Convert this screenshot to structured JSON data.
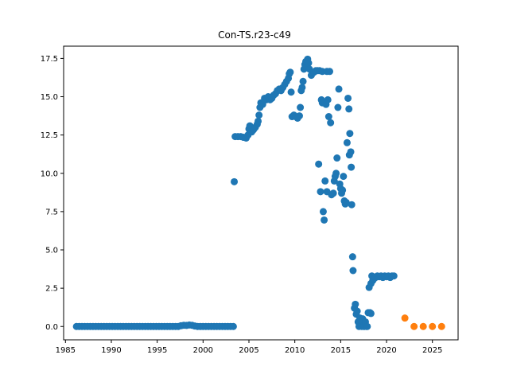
{
  "chart_data": {
    "type": "scatter",
    "title": "Con-TS.r23-c49",
    "xlabel": "",
    "ylabel": "",
    "xlim": [
      1984.8,
      2027.8
    ],
    "ylim": [
      -0.87,
      18.3
    ],
    "x_ticks": [
      1985,
      1990,
      1995,
      2000,
      2005,
      2010,
      2015,
      2020,
      2025
    ],
    "y_ticks": [
      0.0,
      2.5,
      5.0,
      7.5,
      10.0,
      12.5,
      15.0,
      17.5
    ],
    "x_tick_labels": [
      "1985",
      "1990",
      "1995",
      "2000",
      "2005",
      "2010",
      "2015",
      "2020",
      "2025"
    ],
    "y_tick_labels": [
      "0.0",
      "2.5",
      "5.0",
      "7.5",
      "10.0",
      "12.5",
      "15.0",
      "17.5"
    ],
    "grid": false,
    "colors": {
      "series1": "#1f77b4",
      "series2": "#ff7f0e"
    },
    "series": [
      {
        "color": "#1f77b4",
        "points": [
          [
            1986.2,
            0
          ],
          [
            1986.5,
            0
          ],
          [
            1986.8,
            0
          ],
          [
            1987.1,
            0
          ],
          [
            1987.4,
            0
          ],
          [
            1987.7,
            0
          ],
          [
            1988.0,
            0
          ],
          [
            1988.3,
            0
          ],
          [
            1988.6,
            0
          ],
          [
            1988.9,
            0
          ],
          [
            1989.2,
            0
          ],
          [
            1989.5,
            0
          ],
          [
            1989.8,
            0
          ],
          [
            1990.1,
            0
          ],
          [
            1990.4,
            0
          ],
          [
            1990.7,
            0
          ],
          [
            1991.0,
            0
          ],
          [
            1991.3,
            0
          ],
          [
            1991.6,
            0
          ],
          [
            1991.9,
            0
          ],
          [
            1992.2,
            0
          ],
          [
            1992.5,
            0
          ],
          [
            1992.8,
            0
          ],
          [
            1993.1,
            0
          ],
          [
            1993.4,
            0
          ],
          [
            1993.7,
            0
          ],
          [
            1994.0,
            0
          ],
          [
            1994.3,
            0
          ],
          [
            1994.6,
            0
          ],
          [
            1994.9,
            0
          ],
          [
            1995.2,
            0
          ],
          [
            1995.5,
            0
          ],
          [
            1995.8,
            0
          ],
          [
            1996.1,
            0
          ],
          [
            1996.4,
            0
          ],
          [
            1996.7,
            0
          ],
          [
            1997.0,
            0
          ],
          [
            1997.3,
            0
          ],
          [
            1997.6,
            0.05
          ],
          [
            1997.9,
            0.08
          ],
          [
            1998.2,
            0.07
          ],
          [
            1998.5,
            0.1
          ],
          [
            1998.8,
            0.08
          ],
          [
            1999.1,
            0.03
          ],
          [
            1999.4,
            0
          ],
          [
            1999.7,
            0
          ],
          [
            2000.0,
            0
          ],
          [
            2000.3,
            0
          ],
          [
            2000.6,
            0
          ],
          [
            2000.9,
            0
          ],
          [
            2001.2,
            0
          ],
          [
            2001.5,
            0
          ],
          [
            2001.8,
            0
          ],
          [
            2002.1,
            0
          ],
          [
            2002.4,
            0
          ],
          [
            2002.7,
            0
          ],
          [
            2003.0,
            0
          ],
          [
            2003.3,
            0
          ],
          [
            2003.4,
            9.45
          ],
          [
            2003.5,
            12.4
          ],
          [
            2003.8,
            12.4
          ],
          [
            2004.1,
            12.4
          ],
          [
            2004.4,
            12.35
          ],
          [
            2004.7,
            12.3
          ],
          [
            2004.9,
            12.5
          ],
          [
            2005.0,
            12.9
          ],
          [
            2005.1,
            13.1
          ],
          [
            2005.3,
            12.7
          ],
          [
            2005.5,
            12.85
          ],
          [
            2005.7,
            13.0
          ],
          [
            2005.9,
            13.2
          ],
          [
            2006.0,
            13.4
          ],
          [
            2006.1,
            13.8
          ],
          [
            2006.2,
            14.3
          ],
          [
            2006.3,
            14.6
          ],
          [
            2006.5,
            14.5
          ],
          [
            2006.7,
            14.9
          ],
          [
            2006.9,
            14.8
          ],
          [
            2007.1,
            15.0
          ],
          [
            2007.3,
            14.8
          ],
          [
            2007.5,
            14.9
          ],
          [
            2007.7,
            15.1
          ],
          [
            2007.9,
            15.2
          ],
          [
            2008.1,
            15.4
          ],
          [
            2008.3,
            15.5
          ],
          [
            2008.5,
            15.4
          ],
          [
            2008.7,
            15.6
          ],
          [
            2008.9,
            15.8
          ],
          [
            2009.1,
            16.0
          ],
          [
            2009.3,
            16.2
          ],
          [
            2009.4,
            16.5
          ],
          [
            2009.5,
            16.6
          ],
          [
            2009.6,
            15.3
          ],
          [
            2009.7,
            13.7
          ],
          [
            2009.9,
            13.8
          ],
          [
            2010.1,
            13.7
          ],
          [
            2010.3,
            13.6
          ],
          [
            2010.5,
            13.75
          ],
          [
            2010.6,
            14.3
          ],
          [
            2010.7,
            15.4
          ],
          [
            2010.8,
            15.6
          ],
          [
            2010.9,
            16.0
          ],
          [
            2011.0,
            16.8
          ],
          [
            2011.1,
            17.1
          ],
          [
            2011.2,
            17.3
          ],
          [
            2011.4,
            17.45
          ],
          [
            2011.5,
            17.2
          ],
          [
            2011.6,
            16.8
          ],
          [
            2011.8,
            16.4
          ],
          [
            2011.9,
            16.6
          ],
          [
            2012.1,
            16.6
          ],
          [
            2012.3,
            16.7
          ],
          [
            2012.5,
            16.7
          ],
          [
            2012.7,
            16.7
          ],
          [
            2013.0,
            16.65
          ],
          [
            2013.5,
            16.65
          ],
          [
            2013.8,
            16.65
          ],
          [
            2012.6,
            10.6
          ],
          [
            2012.8,
            8.8
          ],
          [
            2012.9,
            14.8
          ],
          [
            2013.0,
            14.6
          ],
          [
            2013.1,
            7.5
          ],
          [
            2013.2,
            6.95
          ],
          [
            2013.3,
            9.5
          ],
          [
            2013.4,
            14.5
          ],
          [
            2013.5,
            8.8
          ],
          [
            2013.6,
            14.8
          ],
          [
            2013.7,
            13.7
          ],
          [
            2013.9,
            13.3
          ],
          [
            2014.0,
            8.6
          ],
          [
            2014.2,
            8.7
          ],
          [
            2014.3,
            9.5
          ],
          [
            2014.4,
            9.8
          ],
          [
            2014.5,
            10.0
          ],
          [
            2014.6,
            11.0
          ],
          [
            2014.7,
            14.3
          ],
          [
            2014.8,
            15.5
          ],
          [
            2014.9,
            9.3
          ],
          [
            2015.0,
            9.0
          ],
          [
            2015.1,
            8.7
          ],
          [
            2015.2,
            8.9
          ],
          [
            2015.3,
            9.8
          ],
          [
            2015.4,
            8.2
          ],
          [
            2015.5,
            8.0
          ],
          [
            2015.6,
            8.1
          ],
          [
            2015.7,
            12.0
          ],
          [
            2015.8,
            14.9
          ],
          [
            2015.9,
            14.2
          ],
          [
            2015.95,
            11.2
          ],
          [
            2016.0,
            12.6
          ],
          [
            2016.1,
            11.4
          ],
          [
            2016.15,
            10.4
          ],
          [
            2016.2,
            7.95
          ],
          [
            2016.3,
            4.55
          ],
          [
            2016.35,
            3.65
          ],
          [
            2016.5,
            1.2
          ],
          [
            2016.6,
            1.45
          ],
          [
            2016.7,
            0.8
          ],
          [
            2016.8,
            1.0
          ],
          [
            2016.9,
            0.3
          ],
          [
            2017.0,
            0.0
          ],
          [
            2017.1,
            0.55
          ],
          [
            2017.2,
            0.4
          ],
          [
            2017.3,
            0.0
          ],
          [
            2017.4,
            0.5
          ],
          [
            2017.5,
            0.0
          ],
          [
            2017.6,
            0.0
          ],
          [
            2017.7,
            0.3
          ],
          [
            2017.8,
            0.0
          ],
          [
            2017.9,
            0.0
          ],
          [
            2018.0,
            0.9
          ],
          [
            2018.2,
            0.9
          ],
          [
            2018.3,
            0.85
          ],
          [
            2018.1,
            2.55
          ],
          [
            2018.3,
            2.8
          ],
          [
            2018.4,
            3.3
          ],
          [
            2018.5,
            3.0
          ],
          [
            2018.6,
            3.1
          ],
          [
            2018.8,
            3.2
          ],
          [
            2019.0,
            3.3
          ],
          [
            2019.2,
            3.25
          ],
          [
            2019.4,
            3.3
          ],
          [
            2019.6,
            3.2
          ],
          [
            2019.8,
            3.3
          ],
          [
            2020.0,
            3.25
          ],
          [
            2020.2,
            3.3
          ],
          [
            2020.4,
            3.2
          ],
          [
            2020.6,
            3.3
          ],
          [
            2020.8,
            3.3
          ]
        ]
      },
      {
        "color": "#ff7f0e",
        "points": [
          [
            2022.0,
            0.55
          ],
          [
            2023.0,
            0.0
          ],
          [
            2024.0,
            0.0
          ],
          [
            2025.0,
            0.0
          ],
          [
            2026.0,
            0.0
          ]
        ]
      }
    ]
  }
}
